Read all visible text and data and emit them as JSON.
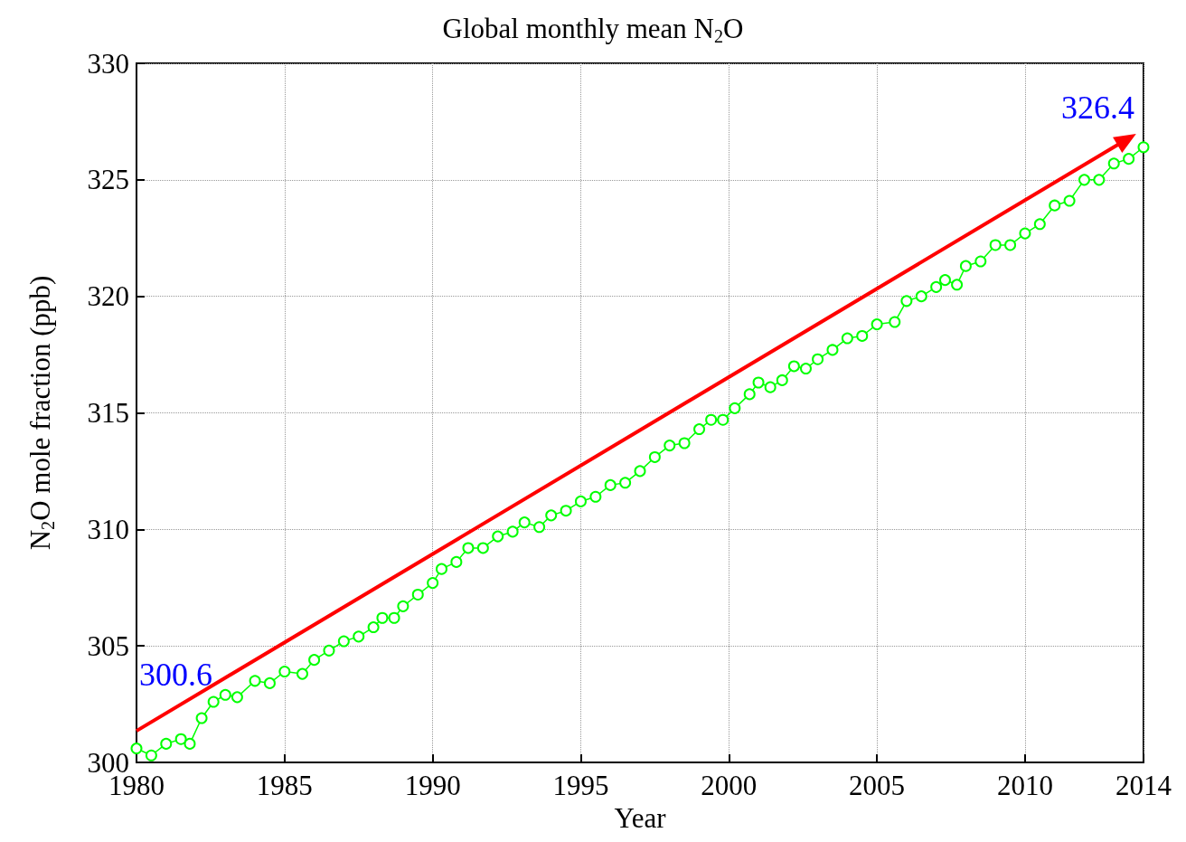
{
  "chart_data": {
    "type": "line",
    "title": "Global monthly mean N$_{2}$O",
    "xlabel": "Year",
    "ylabel": "N$_{2}$O mole fraction (ppb)",
    "xlim": [
      1980,
      2014
    ],
    "ylim": [
      300,
      330
    ],
    "xticks": [
      1980,
      1985,
      1990,
      1995,
      2000,
      2005,
      2010,
      2014
    ],
    "yticks": [
      300,
      305,
      310,
      315,
      320,
      325,
      330
    ],
    "grid": "dotted",
    "annotations": [
      {
        "text": "300.6",
        "x": 1980,
        "y": 300.6
      },
      {
        "text": "326.4",
        "x": 2014,
        "y": 326.4
      }
    ],
    "series": [
      {
        "color": "#00ff00",
        "marker": "circle",
        "x": [
          1980.0,
          1980.5,
          1981.0,
          1981.5,
          1981.8,
          1982.2,
          1982.6,
          1983.0,
          1983.4,
          1984.0,
          1984.5,
          1985.0,
          1985.6,
          1986.0,
          1986.5,
          1987.0,
          1987.5,
          1988.0,
          1988.3,
          1988.7,
          1989.0,
          1989.5,
          1990.0,
          1990.3,
          1990.8,
          1991.2,
          1991.7,
          1992.2,
          1992.7,
          1993.1,
          1993.6,
          1994.0,
          1994.5,
          1995.0,
          1995.5,
          1996.0,
          1996.5,
          1997.0,
          1997.5,
          1998.0,
          1998.5,
          1999.0,
          1999.4,
          1999.8,
          2000.2,
          2000.7,
          2001.0,
          2001.4,
          2001.8,
          2002.2,
          2002.6,
          2003.0,
          2003.5,
          2004.0,
          2004.5,
          2005.0,
          2005.6,
          2006.0,
          2006.5,
          2007.0,
          2007.3,
          2007.7,
          2008.0,
          2008.5,
          2009.0,
          2009.5,
          2010.0,
          2010.5,
          2011.0,
          2011.5,
          2012.0,
          2012.5,
          2013.0,
          2013.5,
          2014.0
        ],
        "values": [
          300.6,
          300.3,
          300.8,
          301.0,
          300.8,
          301.9,
          302.6,
          302.9,
          302.8,
          303.5,
          303.4,
          303.9,
          303.8,
          304.4,
          304.8,
          305.2,
          305.4,
          305.8,
          306.2,
          306.2,
          306.7,
          307.2,
          307.7,
          308.3,
          308.6,
          309.2,
          309.2,
          309.7,
          309.9,
          310.3,
          310.1,
          310.6,
          310.8,
          311.2,
          311.4,
          311.9,
          312.0,
          312.5,
          313.1,
          313.6,
          313.7,
          314.3,
          314.7,
          314.7,
          315.2,
          315.8,
          316.3,
          316.1,
          316.4,
          317.0,
          316.9,
          317.3,
          317.7,
          318.2,
          318.3,
          318.8,
          318.9,
          319.8,
          320.0,
          320.4,
          320.7,
          320.5,
          321.3,
          321.5,
          322.2,
          322.2,
          322.7,
          323.1,
          323.9,
          324.1,
          325.0,
          325.0,
          325.7,
          325.9,
          326.4
        ]
      }
    ]
  }
}
